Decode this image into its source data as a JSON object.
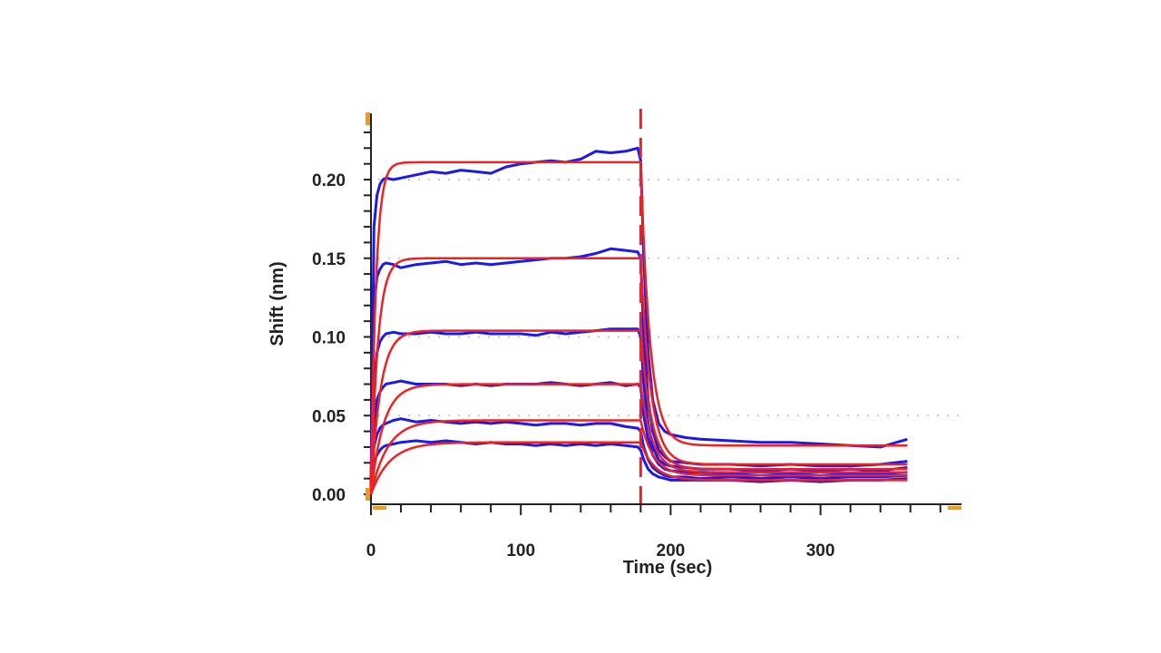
{
  "chart_data": {
    "type": "line",
    "title": "",
    "xlabel": "Time (sec)",
    "ylabel": "Shift (nm)",
    "xlim": [
      0,
      390
    ],
    "ylim": [
      -0.0035,
      0.24
    ],
    "x_ticks": [
      0,
      100,
      200,
      300
    ],
    "x_tick_labels": [
      "0",
      "100",
      "200",
      "300"
    ],
    "y_ticks": [
      0.0,
      0.05,
      0.1,
      0.15,
      0.2
    ],
    "y_tick_labels": [
      "0.00",
      "0.05",
      "0.10",
      "0.15",
      "0.20"
    ],
    "grid": "horizontal dotted at labeled y ticks",
    "legend": "none",
    "association_end_marker_x": 180,
    "colors": {
      "observed": "#1a1aee",
      "fit": "#ee2222",
      "marker": "#ee9a1a",
      "step_line": "#ee2222",
      "grid": "#c8c8c8",
      "axis": "#222222"
    },
    "x": [
      0,
      2,
      4,
      6,
      8,
      10,
      15,
      20,
      30,
      40,
      50,
      60,
      70,
      80,
      90,
      100,
      110,
      120,
      130,
      140,
      150,
      160,
      170,
      178,
      180,
      182,
      185,
      188,
      192,
      196,
      200,
      210,
      220,
      240,
      260,
      280,
      300,
      320,
      340,
      358
    ],
    "series": [
      {
        "kind": "observed",
        "values": [
          0.005,
          0.17,
          0.19,
          0.197,
          0.2,
          0.201,
          0.2,
          0.201,
          0.203,
          0.205,
          0.204,
          0.206,
          0.205,
          0.204,
          0.208,
          0.21,
          0.211,
          0.212,
          0.211,
          0.213,
          0.218,
          0.217,
          0.218,
          0.22,
          0.212,
          0.15,
          0.09,
          0.06,
          0.045,
          0.04,
          0.038,
          0.036,
          0.035,
          0.034,
          0.033,
          0.033,
          0.032,
          0.031,
          0.03,
          0.035
        ]
      },
      {
        "kind": "observed",
        "values": [
          0.004,
          0.12,
          0.138,
          0.143,
          0.146,
          0.147,
          0.146,
          0.144,
          0.146,
          0.147,
          0.148,
          0.146,
          0.147,
          0.146,
          0.147,
          0.148,
          0.149,
          0.15,
          0.15,
          0.151,
          0.153,
          0.156,
          0.155,
          0.154,
          0.15,
          0.1,
          0.06,
          0.04,
          0.028,
          0.024,
          0.021,
          0.02,
          0.019,
          0.019,
          0.018,
          0.019,
          0.018,
          0.018,
          0.019,
          0.021
        ]
      },
      {
        "kind": "observed",
        "values": [
          0.003,
          0.07,
          0.09,
          0.097,
          0.1,
          0.102,
          0.103,
          0.102,
          0.102,
          0.103,
          0.102,
          0.102,
          0.103,
          0.102,
          0.102,
          0.102,
          0.101,
          0.103,
          0.102,
          0.103,
          0.104,
          0.105,
          0.105,
          0.105,
          0.1,
          0.07,
          0.045,
          0.03,
          0.022,
          0.019,
          0.018,
          0.017,
          0.016,
          0.016,
          0.015,
          0.016,
          0.015,
          0.016,
          0.015,
          0.017
        ]
      },
      {
        "kind": "observed",
        "values": [
          0.003,
          0.045,
          0.06,
          0.065,
          0.068,
          0.07,
          0.071,
          0.072,
          0.07,
          0.07,
          0.07,
          0.069,
          0.07,
          0.069,
          0.07,
          0.07,
          0.07,
          0.071,
          0.07,
          0.069,
          0.07,
          0.071,
          0.069,
          0.07,
          0.068,
          0.05,
          0.035,
          0.025,
          0.019,
          0.016,
          0.015,
          0.014,
          0.014,
          0.013,
          0.014,
          0.013,
          0.012,
          0.013,
          0.013,
          0.014
        ]
      },
      {
        "kind": "observed",
        "values": [
          0.002,
          0.03,
          0.038,
          0.042,
          0.044,
          0.045,
          0.047,
          0.048,
          0.046,
          0.047,
          0.046,
          0.045,
          0.046,
          0.045,
          0.046,
          0.045,
          0.044,
          0.045,
          0.045,
          0.044,
          0.045,
          0.045,
          0.043,
          0.042,
          0.04,
          0.03,
          0.022,
          0.017,
          0.014,
          0.012,
          0.011,
          0.011,
          0.01,
          0.011,
          0.01,
          0.011,
          0.01,
          0.011,
          0.011,
          0.012
        ]
      },
      {
        "kind": "observed",
        "values": [
          0.002,
          0.02,
          0.025,
          0.028,
          0.03,
          0.031,
          0.032,
          0.033,
          0.034,
          0.033,
          0.034,
          0.033,
          0.032,
          0.033,
          0.032,
          0.032,
          0.031,
          0.032,
          0.031,
          0.032,
          0.031,
          0.032,
          0.031,
          0.03,
          0.028,
          0.022,
          0.016,
          0.013,
          0.011,
          0.01,
          0.009,
          0.009,
          0.009,
          0.009,
          0.008,
          0.009,
          0.008,
          0.009,
          0.009,
          0.01
        ]
      },
      {
        "kind": "fit",
        "plateau": 0.211,
        "kon": 0.3,
        "end": 0.031,
        "koff": 0.16
      },
      {
        "kind": "fit",
        "plateau": 0.15,
        "kon": 0.22,
        "end": 0.019,
        "koff": 0.15
      },
      {
        "kind": "fit",
        "plateau": 0.104,
        "kon": 0.16,
        "end": 0.016,
        "koff": 0.14
      },
      {
        "kind": "fit",
        "plateau": 0.07,
        "kon": 0.12,
        "end": 0.014,
        "koff": 0.13
      },
      {
        "kind": "fit",
        "plateau": 0.047,
        "kon": 0.09,
        "end": 0.012,
        "koff": 0.12
      },
      {
        "kind": "fit",
        "plateau": 0.033,
        "kon": 0.08,
        "end": 0.009,
        "koff": 0.11
      }
    ]
  }
}
